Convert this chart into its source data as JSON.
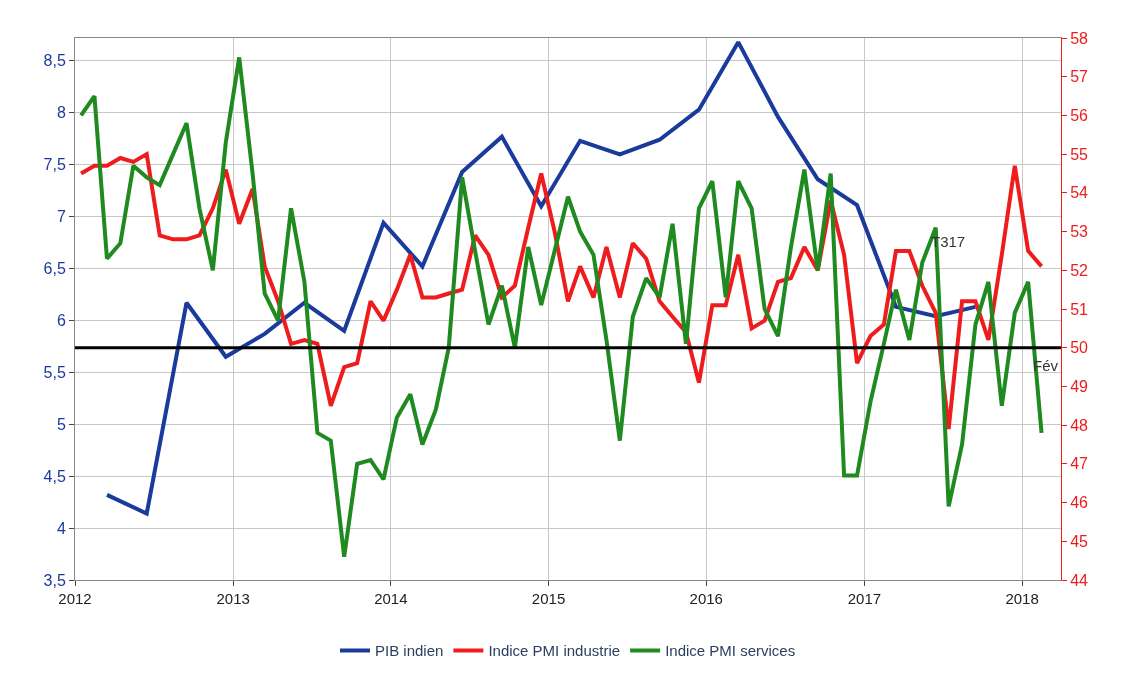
{
  "chart_data": {
    "type": "line",
    "xlim": [
      "2012-01-01",
      "2018-04-01"
    ],
    "xticks": [
      {
        "value": "2012-01-01",
        "label": "2012"
      },
      {
        "value": "2013-01-01",
        "label": "2013"
      },
      {
        "value": "2014-01-01",
        "label": "2014"
      },
      {
        "value": "2015-01-01",
        "label": "2015"
      },
      {
        "value": "2016-01-01",
        "label": "2016"
      },
      {
        "value": "2017-01-01",
        "label": "2017"
      },
      {
        "value": "2018-01-01",
        "label": "2018"
      }
    ],
    "ylim": [
      3.5,
      8.72
    ],
    "yticks": [
      {
        "value": 3.5,
        "label": "3,5"
      },
      4,
      {
        "value": 4.5,
        "label": "4,5"
      },
      5,
      {
        "value": 5.5,
        "label": "5,5"
      },
      6,
      {
        "value": 6.5,
        "label": "6,5"
      },
      7,
      {
        "value": 7.5,
        "label": "7,5"
      },
      8,
      {
        "value": 8.5,
        "label": "8,5"
      }
    ],
    "y2lim": [
      44,
      58
    ],
    "y2ticks": [
      44,
      45,
      46,
      47,
      48,
      49,
      50,
      51,
      52,
      53,
      54,
      55,
      56,
      57,
      58
    ],
    "grid": true,
    "legend": "bottom",
    "marker": "none",
    "line_style": "solid",
    "ref_lines": [
      {
        "axis": "y2",
        "value": 50,
        "color": "#000000"
      }
    ],
    "annotations": [
      "T317",
      "Fév"
    ],
    "series": [
      {
        "name": "PIB indien",
        "color": "#1a3a9c",
        "x": [
          "2012-03-15",
          "2012-06-15",
          "2012-09-15",
          "2012-12-15",
          "2013-03-15",
          "2013-06-15",
          "2013-09-15",
          "2013-12-15",
          "2014-03-15",
          "2014-06-15",
          "2014-09-15",
          "2014-12-15",
          "2015-03-15",
          "2015-06-15",
          "2015-09-15",
          "2015-12-15",
          "2016-03-15",
          "2016-06-15",
          "2016-09-15",
          "2016-12-15",
          "2017-03-15",
          "2017-06-15",
          "2017-09-15"
        ],
        "values": [
          4.32,
          4.14,
          6.17,
          5.65,
          5.87,
          6.17,
          5.9,
          6.94,
          6.52,
          7.43,
          7.77,
          7.1,
          7.73,
          7.6,
          7.74,
          8.03,
          8.68,
          7.96,
          7.36,
          7.11,
          6.13,
          6.04,
          6.13
        ]
      },
      {
        "name": "Indice PMI industrie",
        "color": "#ee1c1c",
        "axis": "y2",
        "values": [
          54.5,
          54.7,
          54.7,
          54.9,
          54.8,
          55.0,
          52.9,
          52.8,
          52.8,
          52.9,
          53.6,
          54.6,
          53.2,
          54.1,
          52.1,
          51.2,
          50.1,
          50.2,
          50.1,
          48.5,
          49.5,
          49.6,
          51.2,
          50.7,
          51.5,
          52.4,
          51.3,
          51.3,
          51.4,
          51.5,
          52.9,
          52.4,
          51.3,
          51.6,
          53.1,
          54.5,
          53.0,
          51.2,
          52.1,
          51.3,
          52.6,
          51.3,
          52.7,
          52.3,
          51.2,
          50.8,
          50.4,
          49.1,
          51.1,
          51.1,
          52.4,
          50.5,
          50.7,
          51.7,
          51.8,
          52.6,
          52.0,
          53.8,
          52.4,
          49.6,
          50.3,
          50.6,
          52.5,
          52.5,
          51.6,
          50.9,
          47.9,
          51.2,
          51.2,
          50.2,
          52.4,
          54.7,
          52.5,
          52.1
        ]
      },
      {
        "name": "Indice PMI services",
        "color": "#1f8a1f",
        "axis": "y2",
        "values": [
          56.0,
          56.5,
          52.3,
          52.7,
          54.7,
          54.4,
          54.2,
          55.0,
          55.8,
          53.6,
          52.0,
          55.3,
          57.5,
          54.5,
          51.4,
          50.7,
          53.6,
          51.7,
          47.8,
          47.6,
          44.6,
          47.0,
          47.1,
          46.6,
          48.2,
          48.8,
          47.5,
          48.4,
          50.0,
          54.4,
          52.5,
          50.6,
          51.6,
          50.0,
          52.6,
          51.1,
          52.5,
          53.9,
          53.0,
          52.4,
          50.2,
          47.6,
          50.8,
          51.8,
          51.3,
          53.2,
          50.1,
          53.6,
          54.3,
          51.3,
          54.3,
          53.6,
          51.0,
          50.3,
          52.6,
          54.6,
          52.0,
          54.5,
          46.7,
          46.7,
          48.6,
          50.1,
          51.5,
          50.2,
          52.2,
          53.1,
          45.9,
          47.5,
          50.6,
          51.7,
          48.5,
          50.9,
          51.7,
          47.8
        ]
      }
    ],
    "x": [
      "2012-01-15",
      "2012-02-15",
      "2012-03-15",
      "2012-04-15",
      "2012-05-15",
      "2012-06-15",
      "2012-07-15",
      "2012-08-15",
      "2012-09-15",
      "2012-10-15",
      "2012-11-15",
      "2012-12-15",
      "2013-01-15",
      "2013-02-15",
      "2013-03-15",
      "2013-04-15",
      "2013-05-15",
      "2013-06-15",
      "2013-07-15",
      "2013-08-15",
      "2013-09-15",
      "2013-10-15",
      "2013-11-15",
      "2013-12-15",
      "2014-01-15",
      "2014-02-15",
      "2014-03-15",
      "2014-04-15",
      "2014-05-15",
      "2014-06-15",
      "2014-07-15",
      "2014-08-15",
      "2014-09-15",
      "2014-10-15",
      "2014-11-15",
      "2014-12-15",
      "2015-01-15",
      "2015-02-15",
      "2015-03-15",
      "2015-04-15",
      "2015-05-15",
      "2015-06-15",
      "2015-07-15",
      "2015-08-15",
      "2015-09-15",
      "2015-10-15",
      "2015-11-15",
      "2015-12-15",
      "2016-01-15",
      "2016-02-15",
      "2016-03-15",
      "2016-04-15",
      "2016-05-15",
      "2016-06-15",
      "2016-07-15",
      "2016-08-15",
      "2016-09-15",
      "2016-10-15",
      "2016-11-15",
      "2016-12-15",
      "2017-01-15",
      "2017-02-15",
      "2017-03-15",
      "2017-04-15",
      "2017-05-15",
      "2017-06-15",
      "2017-07-15",
      "2017-08-15",
      "2017-09-15",
      "2017-10-15",
      "2017-11-15",
      "2017-12-15",
      "2018-01-15",
      "2018-02-15"
    ]
  }
}
